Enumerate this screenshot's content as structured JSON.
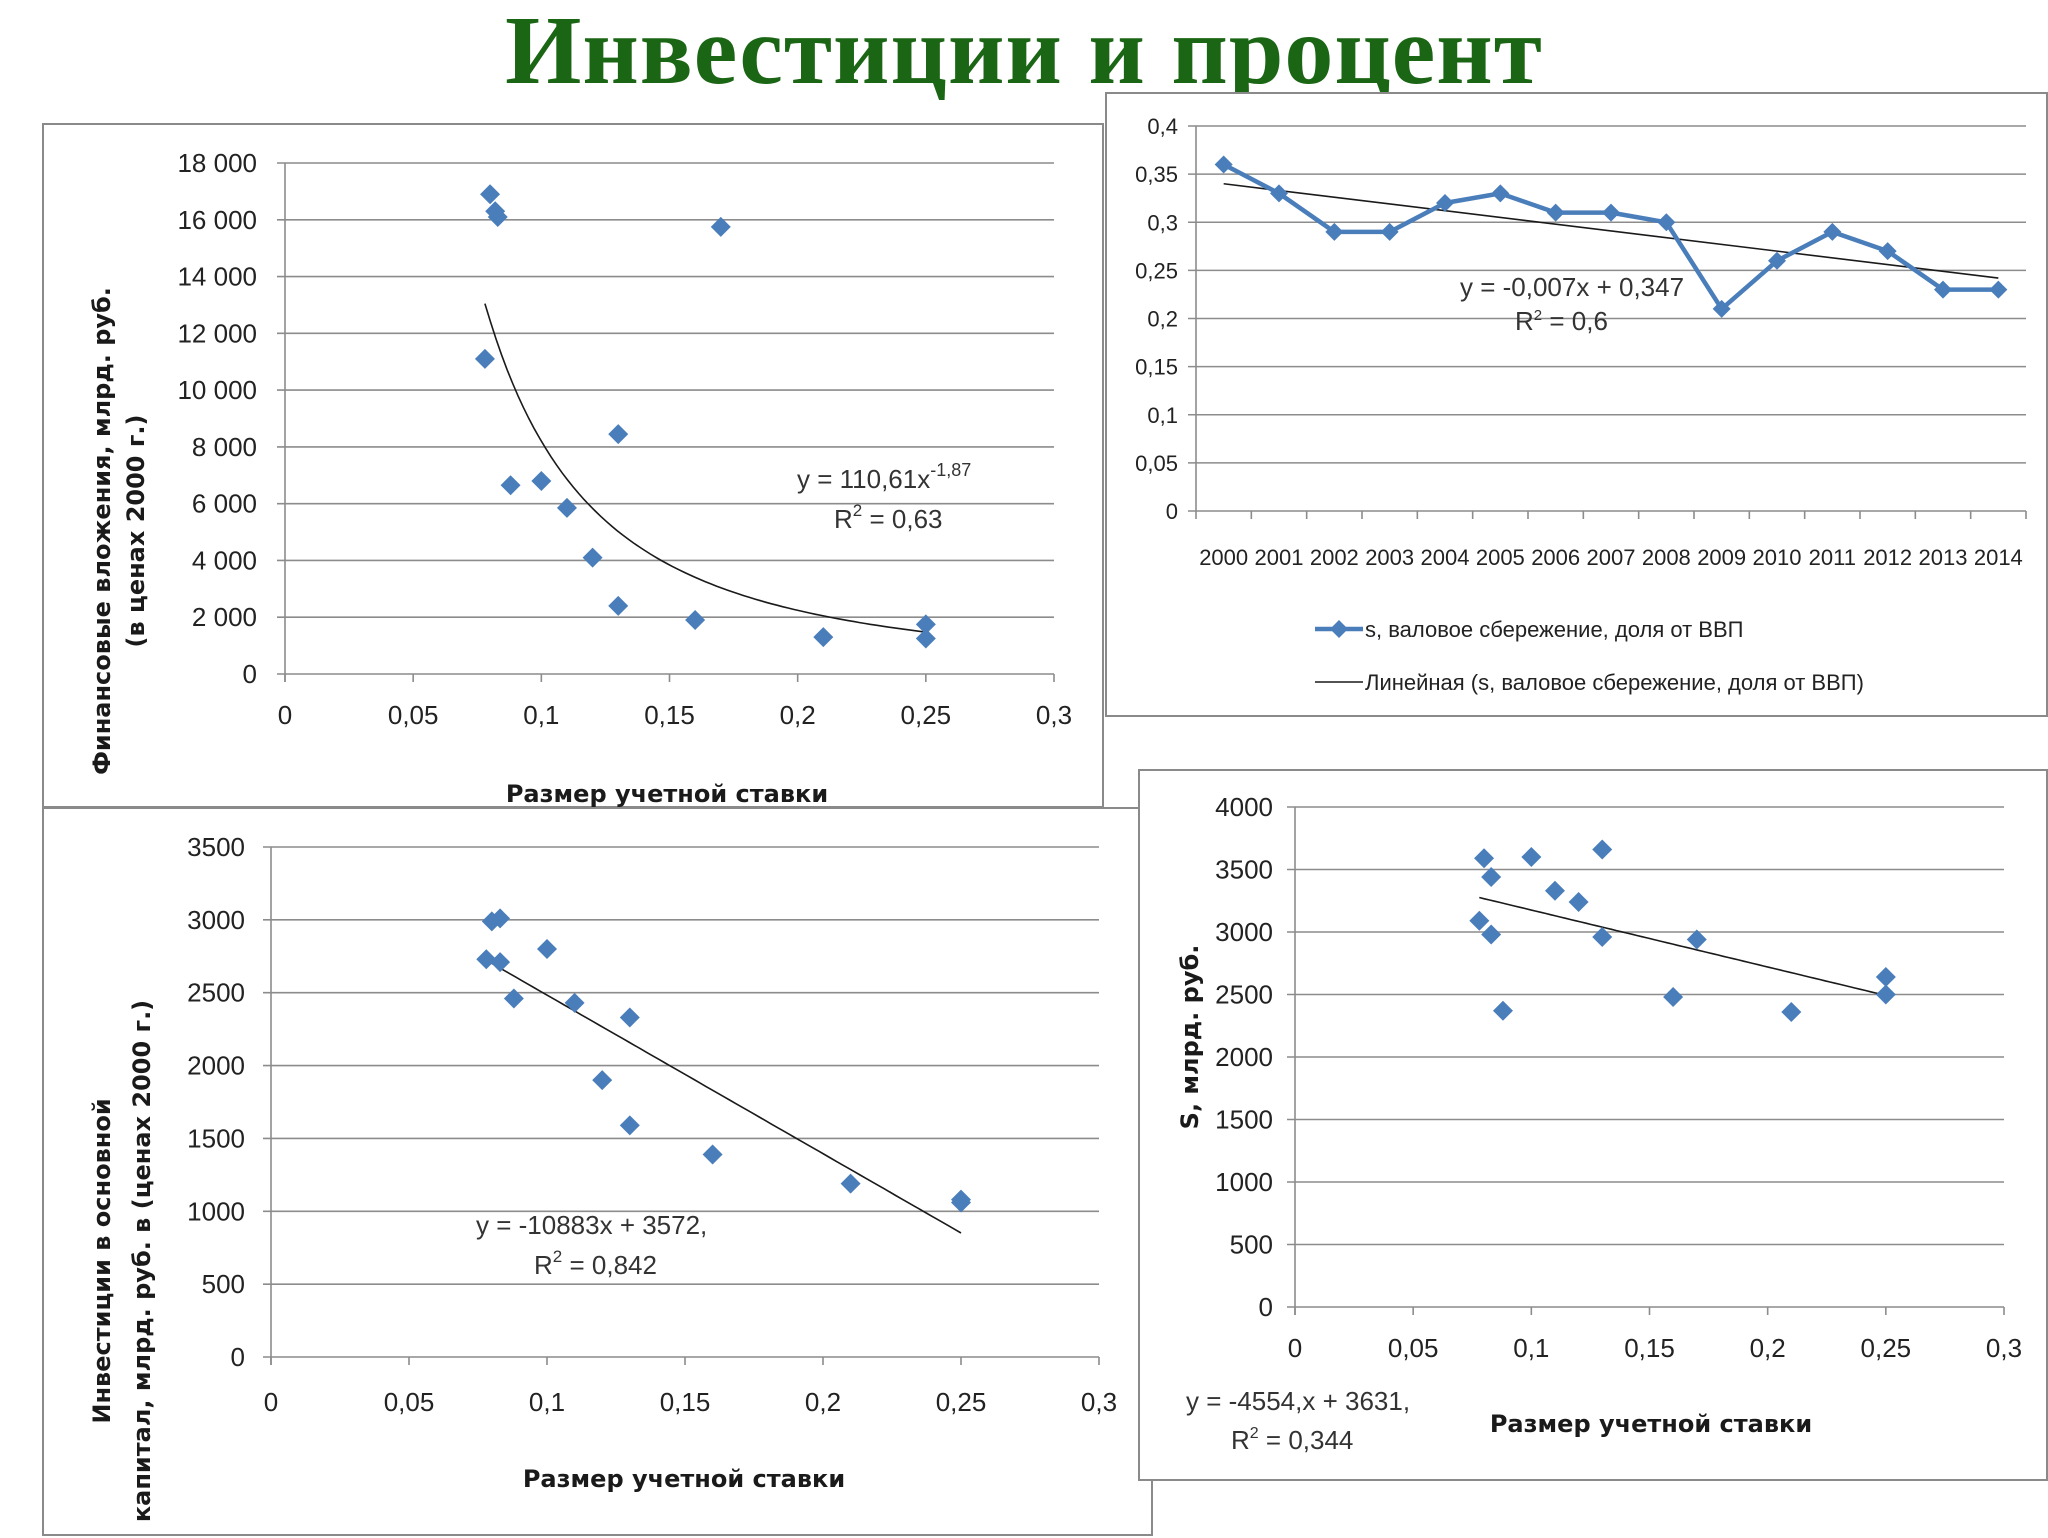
{
  "title": "Инвестиции и процент",
  "colors": {
    "title": "#1b6614",
    "marker": "#4a7ebb",
    "trendline": "#1a1a1a",
    "grid": "#8c8c8c"
  },
  "chart_data": [
    {
      "id": "financial",
      "type": "scatter",
      "xlabel": "Размер учетной ставки",
      "ylabel_lines": [
        "Финансовые вложения, млрд. руб.",
        "(в ценах 2000 г.)"
      ],
      "xlim": [
        0,
        0.3
      ],
      "ylim": [
        0,
        18000
      ],
      "x_ticks": [
        0,
        0.05,
        0.1,
        0.15,
        0.2,
        0.25,
        0.3
      ],
      "x_tick_labels": [
        "0",
        "0,05",
        "0,1",
        "0,15",
        "0,2",
        "0,25",
        "0,3"
      ],
      "y_ticks": [
        0,
        2000,
        4000,
        6000,
        8000,
        10000,
        12000,
        14000,
        16000,
        18000
      ],
      "y_tick_labels": [
        "0",
        "2 000",
        "4 000",
        "6 000",
        "8 000",
        "10 000",
        "12 000",
        "14 000",
        "16 000",
        "18 000"
      ],
      "grid": "horizontal",
      "marker": "diamond",
      "points": [
        {
          "x": 0.08,
          "y": 16900
        },
        {
          "x": 0.082,
          "y": 16300
        },
        {
          "x": 0.083,
          "y": 16100
        },
        {
          "x": 0.078,
          "y": 11100
        },
        {
          "x": 0.088,
          "y": 6650
        },
        {
          "x": 0.1,
          "y": 6800
        },
        {
          "x": 0.11,
          "y": 5850
        },
        {
          "x": 0.12,
          "y": 4100
        },
        {
          "x": 0.13,
          "y": 8450
        },
        {
          "x": 0.13,
          "y": 2400
        },
        {
          "x": 0.16,
          "y": 1900
        },
        {
          "x": 0.17,
          "y": 15750
        },
        {
          "x": 0.21,
          "y": 1300
        },
        {
          "x": 0.25,
          "y": 1750
        },
        {
          "x": 0.25,
          "y": 1250
        }
      ],
      "trendline": {
        "type": "power",
        "a": 110.61,
        "b": -1.87,
        "x_range": [
          0.078,
          0.25
        ]
      },
      "equation": {
        "text": "y = 110,61x",
        "exponent": "-1,87"
      },
      "r2": {
        "prefix": "R",
        "sup": "2",
        "suffix": " = 0,63"
      }
    },
    {
      "id": "savings",
      "type": "line",
      "x": [
        "2000",
        "2001",
        "2002",
        "2003",
        "2004",
        "2005",
        "2006",
        "2007",
        "2008",
        "2009",
        "2010",
        "2011",
        "2012",
        "2013",
        "2014"
      ],
      "series": [
        {
          "name": "s, валовое сбережение, доля от ВВП",
          "values": [
            0.36,
            0.33,
            0.29,
            0.29,
            0.32,
            0.33,
            0.31,
            0.31,
            0.3,
            0.21,
            0.26,
            0.29,
            0.27,
            0.23,
            0.23
          ]
        }
      ],
      "ylim": [
        0,
        0.4
      ],
      "y_ticks": [
        0,
        0.05,
        0.1,
        0.15,
        0.2,
        0.25,
        0.3,
        0.35,
        0.4
      ],
      "y_tick_labels": [
        "0",
        "0,05",
        "0,1",
        "0,15",
        "0,2",
        "0,25",
        "0,3",
        "0,35",
        "0,4"
      ],
      "grid": "horizontal",
      "marker": "diamond",
      "trendline": {
        "type": "linear",
        "slope": -0.007,
        "intercept": 0.347,
        "name": "Линейная (s, валовое сбережение, доля от ВВП)"
      },
      "equation": {
        "text": "y = -0,007x + 0,347"
      },
      "r2": {
        "prefix": "R",
        "sup": "2",
        "suffix": " = 0,6"
      },
      "legend_position": "bottom"
    },
    {
      "id": "investment",
      "type": "scatter",
      "xlabel": "Размер учетной ставки",
      "ylabel_lines": [
        "Инвестиции в основной",
        "капитал, млрд. руб. в  (ценах 2000 г.)"
      ],
      "xlim": [
        0,
        0.3
      ],
      "ylim": [
        0,
        3500
      ],
      "x_ticks": [
        0,
        0.05,
        0.1,
        0.15,
        0.2,
        0.25,
        0.3
      ],
      "x_tick_labels": [
        "0",
        "0,05",
        "0,1",
        "0,15",
        "0,2",
        "0,25",
        "0,3"
      ],
      "y_ticks": [
        0,
        500,
        1000,
        1500,
        2000,
        2500,
        3000,
        3500
      ],
      "y_tick_labels": [
        "0",
        "500",
        "1000",
        "1500",
        "2000",
        "2500",
        "3000",
        "3500"
      ],
      "grid": "horizontal",
      "marker": "diamond",
      "points": [
        {
          "x": 0.08,
          "y": 2990
        },
        {
          "x": 0.083,
          "y": 3010
        },
        {
          "x": 0.078,
          "y": 2730
        },
        {
          "x": 0.083,
          "y": 2710
        },
        {
          "x": 0.088,
          "y": 2460
        },
        {
          "x": 0.1,
          "y": 2800
        },
        {
          "x": 0.11,
          "y": 2430
        },
        {
          "x": 0.12,
          "y": 1900
        },
        {
          "x": 0.13,
          "y": 2330
        },
        {
          "x": 0.13,
          "y": 1590
        },
        {
          "x": 0.16,
          "y": 1390
        },
        {
          "x": 0.21,
          "y": 1190
        },
        {
          "x": 0.25,
          "y": 1080
        },
        {
          "x": 0.25,
          "y": 1060
        }
      ],
      "trendline": {
        "type": "linear",
        "slope": -10883,
        "intercept": 3572,
        "x_range": [
          0.078,
          0.25
        ]
      },
      "equation": {
        "text": "y = -10883x + 3572,"
      },
      "r2": {
        "prefix": "R",
        "sup": "2",
        "suffix": " = 0,842"
      }
    },
    {
      "id": "s-rate",
      "type": "scatter",
      "xlabel": "Размер учетной ставки",
      "ylabel_lines": [
        "S, млрд. руб."
      ],
      "xlim": [
        0,
        0.3
      ],
      "ylim": [
        0,
        4000
      ],
      "x_ticks": [
        0,
        0.05,
        0.1,
        0.15,
        0.2,
        0.25,
        0.3
      ],
      "x_tick_labels": [
        "0",
        "0,05",
        "0,1",
        "0,15",
        "0,2",
        "0,25",
        "0,3"
      ],
      "y_ticks": [
        0,
        500,
        1000,
        1500,
        2000,
        2500,
        3000,
        3500,
        4000
      ],
      "y_tick_labels": [
        "0",
        "500",
        "1000",
        "1500",
        "2000",
        "2500",
        "3000",
        "3500",
        "4000"
      ],
      "grid": "horizontal",
      "marker": "diamond",
      "points": [
        {
          "x": 0.08,
          "y": 3590
        },
        {
          "x": 0.083,
          "y": 3440
        },
        {
          "x": 0.078,
          "y": 3090
        },
        {
          "x": 0.083,
          "y": 2980
        },
        {
          "x": 0.088,
          "y": 2370
        },
        {
          "x": 0.1,
          "y": 3600
        },
        {
          "x": 0.11,
          "y": 3330
        },
        {
          "x": 0.12,
          "y": 3240
        },
        {
          "x": 0.13,
          "y": 3660
        },
        {
          "x": 0.13,
          "y": 2960
        },
        {
          "x": 0.16,
          "y": 2480
        },
        {
          "x": 0.17,
          "y": 2940
        },
        {
          "x": 0.21,
          "y": 2360
        },
        {
          "x": 0.25,
          "y": 2640
        },
        {
          "x": 0.25,
          "y": 2500
        }
      ],
      "trendline": {
        "type": "linear",
        "slope": -4554,
        "intercept": 3631,
        "x_range": [
          0.078,
          0.25
        ]
      },
      "equation": {
        "text": "y = -4554,x + 3631,"
      },
      "r2": {
        "prefix": "R",
        "sup": "2",
        "suffix": " = 0,344"
      }
    }
  ]
}
